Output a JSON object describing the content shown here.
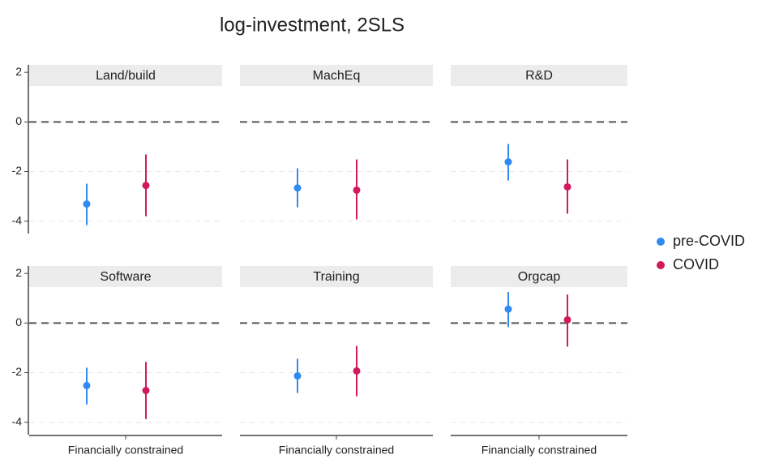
{
  "chart_data": {
    "type": "errorbar",
    "title": "log-investment, 2SLS",
    "xlabel": "Financially constrained",
    "panels": [
      "Land/build",
      "MachEq",
      "R&D",
      "Software",
      "Training",
      "Orgcap"
    ],
    "ylim": [
      -4.5,
      2.3
    ],
    "yticks": [
      -4,
      -2,
      0,
      2
    ],
    "grid": true,
    "hline": 0,
    "legend": "right",
    "series": [
      {
        "name": "pre-COVID",
        "color": "#2f8bf0",
        "values": [
          -3.31,
          -2.66,
          -1.61,
          -2.52,
          -2.13,
          0.56
        ],
        "lower": [
          -4.16,
          -3.44,
          -2.36,
          -3.28,
          -2.82,
          -0.16
        ],
        "upper": [
          -2.49,
          -1.87,
          -0.89,
          -1.8,
          -1.44,
          1.25
        ]
      },
      {
        "name": "COVID",
        "color": "#d3195e",
        "values": [
          -2.56,
          -2.75,
          -2.62,
          -2.72,
          -1.93,
          0.13
        ],
        "lower": [
          -3.8,
          -3.93,
          -3.7,
          -3.87,
          -2.95,
          -0.95
        ],
        "upper": [
          -1.31,
          -1.51,
          -1.51,
          -1.57,
          -0.92,
          1.15
        ]
      }
    ]
  }
}
